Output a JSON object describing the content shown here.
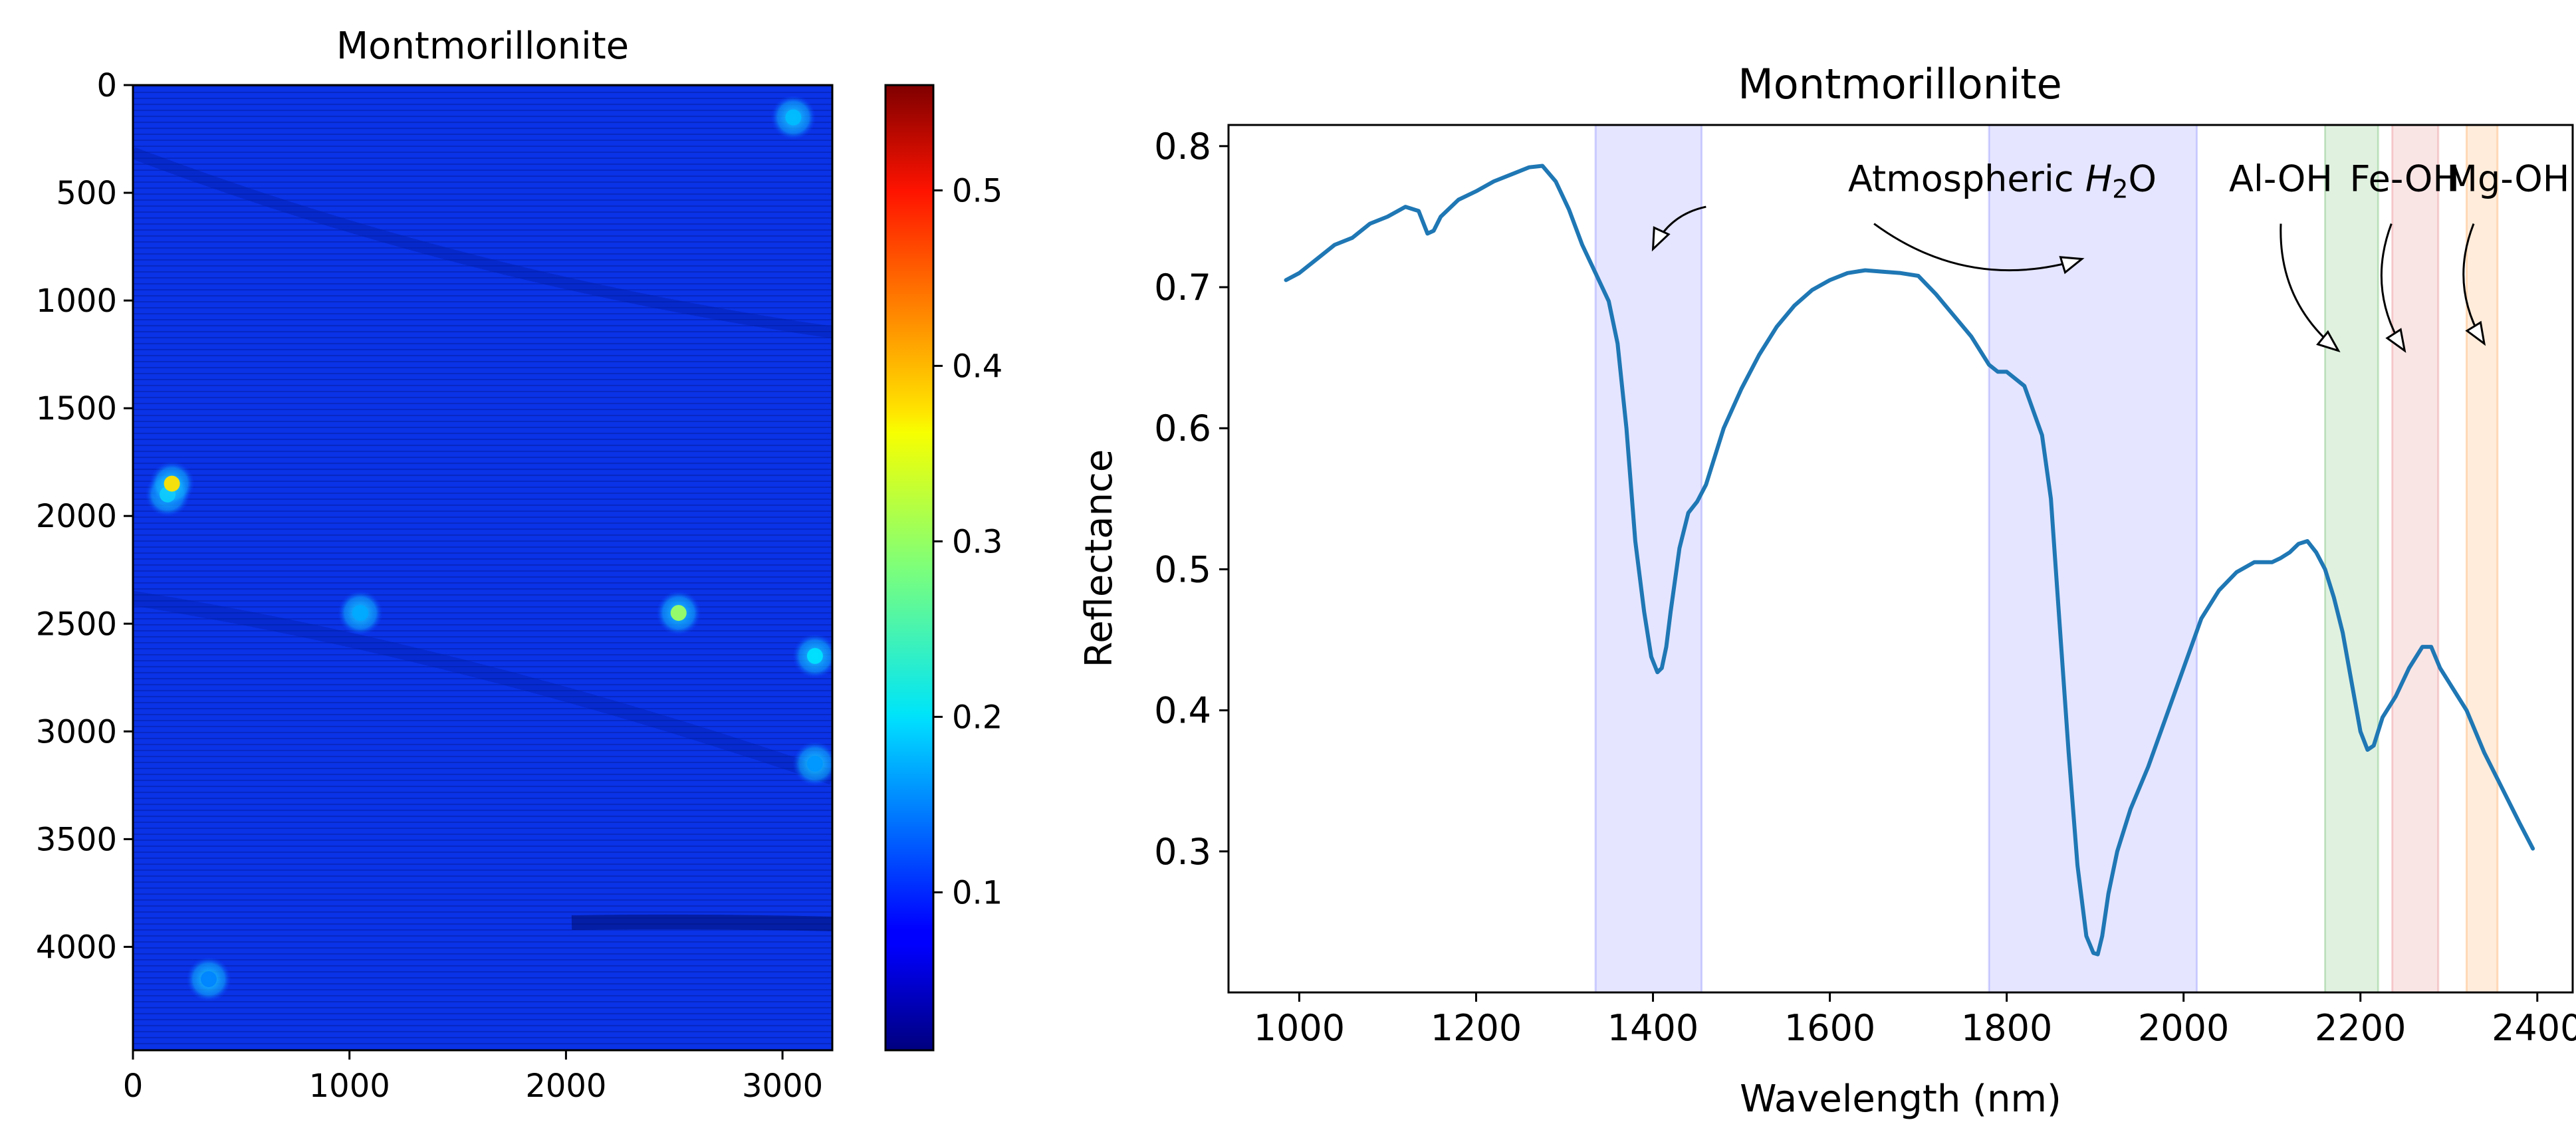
{
  "chart_data": [
    {
      "type": "heatmap",
      "title": "Montmorillonite",
      "xlim": [
        0,
        3230
      ],
      "ylim": [
        4480,
        0
      ],
      "x_ticks": [
        0,
        1000,
        2000,
        3000
      ],
      "y_ticks": [
        0,
        500,
        1000,
        1500,
        2000,
        2500,
        3000,
        3500,
        4000
      ],
      "colormap": "jet",
      "colorbar": {
        "range": [
          0.01,
          0.56
        ],
        "ticks": [
          0.1,
          0.2,
          0.3,
          0.4,
          0.5
        ],
        "tick_labels": [
          "0.1",
          "0.2",
          "0.3",
          "0.4",
          "0.5"
        ]
      },
      "features": [
        {
          "x": 2520,
          "y": 2450,
          "value": 0.3
        },
        {
          "x": 3150,
          "y": 2650,
          "value": 0.2
        },
        {
          "x": 160,
          "y": 1900,
          "value": 0.22
        },
        {
          "x": 180,
          "y": 1850,
          "value": 0.37
        },
        {
          "x": 3050,
          "y": 150,
          "value": 0.18
        },
        {
          "x": 1050,
          "y": 2450,
          "value": 0.17
        },
        {
          "x": 3150,
          "y": 3150,
          "value": 0.16
        },
        {
          "x": 350,
          "y": 4150,
          "value": 0.15
        }
      ]
    },
    {
      "type": "line",
      "title": "Montmorillonite",
      "xlabel": "Wavelength (nm)",
      "ylabel": "Reflectance",
      "xlim": [
        920,
        2440
      ],
      "ylim": [
        0.2,
        0.815
      ],
      "x_ticks": [
        1000,
        1200,
        1400,
        1600,
        1800,
        2000,
        2200,
        2400
      ],
      "y_ticks": [
        0.3,
        0.4,
        0.5,
        0.6,
        0.7,
        0.8
      ],
      "series": [
        {
          "name": "Montmorillonite",
          "color": "#1f77b4",
          "x": [
            985,
            1000,
            1020,
            1040,
            1060,
            1080,
            1100,
            1120,
            1135,
            1145,
            1152,
            1160,
            1180,
            1200,
            1220,
            1240,
            1260,
            1275,
            1290,
            1305,
            1320,
            1335,
            1350,
            1360,
            1370,
            1380,
            1390,
            1398,
            1405,
            1410,
            1415,
            1420,
            1430,
            1440,
            1450,
            1460,
            1480,
            1500,
            1520,
            1540,
            1560,
            1580,
            1600,
            1620,
            1640,
            1660,
            1680,
            1700,
            1720,
            1740,
            1760,
            1780,
            1790,
            1800,
            1820,
            1840,
            1850,
            1860,
            1870,
            1880,
            1890,
            1898,
            1903,
            1908,
            1915,
            1925,
            1940,
            1960,
            1980,
            2000,
            2020,
            2040,
            2060,
            2080,
            2100,
            2110,
            2120,
            2130,
            2140,
            2150,
            2160,
            2170,
            2180,
            2190,
            2200,
            2208,
            2215,
            2225,
            2240,
            2255,
            2270,
            2280,
            2290,
            2300,
            2320,
            2340,
            2360,
            2380,
            2395
          ],
          "y": [
            0.705,
            0.71,
            0.72,
            0.73,
            0.735,
            0.745,
            0.75,
            0.757,
            0.754,
            0.738,
            0.74,
            0.75,
            0.762,
            0.768,
            0.775,
            0.78,
            0.785,
            0.786,
            0.775,
            0.755,
            0.73,
            0.71,
            0.69,
            0.66,
            0.6,
            0.52,
            0.47,
            0.438,
            0.427,
            0.43,
            0.445,
            0.47,
            0.515,
            0.54,
            0.548,
            0.56,
            0.6,
            0.628,
            0.652,
            0.672,
            0.687,
            0.698,
            0.705,
            0.71,
            0.712,
            0.711,
            0.71,
            0.708,
            0.695,
            0.68,
            0.665,
            0.645,
            0.64,
            0.64,
            0.63,
            0.595,
            0.55,
            0.46,
            0.37,
            0.29,
            0.24,
            0.228,
            0.227,
            0.24,
            0.27,
            0.3,
            0.33,
            0.36,
            0.395,
            0.43,
            0.465,
            0.485,
            0.498,
            0.505,
            0.505,
            0.508,
            0.512,
            0.518,
            0.52,
            0.512,
            0.5,
            0.48,
            0.455,
            0.42,
            0.385,
            0.372,
            0.375,
            0.395,
            0.41,
            0.43,
            0.445,
            0.445,
            0.43,
            0.42,
            0.4,
            0.37,
            0.345,
            0.32,
            0.302
          ]
        }
      ],
      "bands": [
        {
          "x0": 1335,
          "x1": 1455,
          "color": "#0000ff",
          "alpha": 0.1
        },
        {
          "x0": 1780,
          "x1": 2015,
          "color": "#0000ff",
          "alpha": 0.1
        },
        {
          "x0": 2160,
          "x1": 2220,
          "color": "#2ca02c",
          "alpha": 0.15
        },
        {
          "x0": 2236,
          "x1": 2288,
          "color": "#d62728",
          "alpha": 0.12
        },
        {
          "x0": 2320,
          "x1": 2355,
          "color": "#ff7f0e",
          "alpha": 0.15
        }
      ],
      "annotations": [
        {
          "label": "Atmospheric ",
          "subscript_label": "H",
          "subscript": "2",
          "suffix": "O",
          "text_x": 1795,
          "text_y": 0.768,
          "arrows": [
            {
              "from": [
                1460,
                0.757
              ],
              "to": [
                1400,
                0.727
              ]
            },
            {
              "from": [
                1650,
                0.745
              ],
              "to": [
                1885,
                0.72
              ]
            }
          ]
        },
        {
          "label": "Al-OH",
          "text_x": 2110,
          "text_y": 0.768,
          "arrows": [
            {
              "from": [
                2110,
                0.745
              ],
              "to": [
                2175,
                0.655
              ]
            }
          ]
        },
        {
          "label": "Fe-OH",
          "text_x": 2250,
          "text_y": 0.768,
          "arrows": [
            {
              "from": [
                2235,
                0.745
              ],
              "to": [
                2250,
                0.655
              ]
            }
          ]
        },
        {
          "label": "Mg-OH",
          "text_x": 2367,
          "text_y": 0.768,
          "arrows": [
            {
              "from": [
                2328,
                0.745
              ],
              "to": [
                2340,
                0.66
              ]
            }
          ]
        }
      ]
    }
  ]
}
